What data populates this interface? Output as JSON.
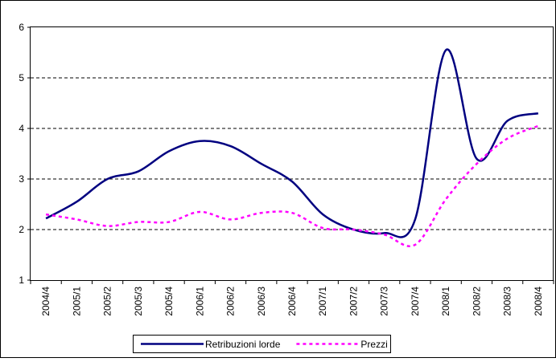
{
  "chart_data": {
    "type": "line",
    "categories": [
      "2004/4",
      "2005/1",
      "2005/2",
      "2005/3",
      "2005/4",
      "2006/1",
      "2006/2",
      "2006/3",
      "2006/4",
      "2007/1",
      "2007/2",
      "2007/3",
      "2007/4",
      "2008/1",
      "2008/2",
      "2008/3",
      "2008/4"
    ],
    "series": [
      {
        "name": "Retribuzioni lorde",
        "color": "#000080",
        "dash": "solid",
        "values": [
          2.22,
          2.55,
          3.0,
          3.15,
          3.55,
          3.75,
          3.65,
          3.3,
          2.95,
          2.3,
          2.0,
          1.93,
          2.2,
          5.55,
          3.4,
          4.15,
          4.3
        ]
      },
      {
        "name": "Prezzi",
        "color": "#ff00ff",
        "dash": "dashed",
        "values": [
          2.3,
          2.2,
          2.07,
          2.15,
          2.15,
          2.35,
          2.2,
          2.33,
          2.33,
          2.03,
          2.0,
          1.9,
          1.7,
          2.6,
          3.3,
          3.8,
          4.05
        ]
      }
    ],
    "ylim": [
      1,
      6
    ],
    "yticks": [
      1,
      2,
      3,
      4,
      5,
      6
    ],
    "grid": true,
    "legend": "bottom"
  }
}
